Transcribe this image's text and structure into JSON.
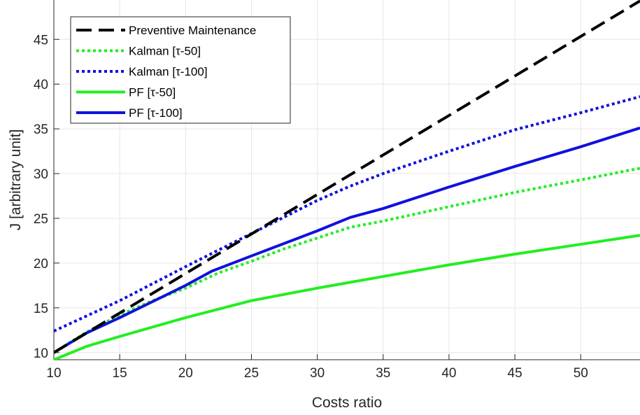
{
  "chart_data": {
    "type": "line",
    "xlabel": "Costs ratio",
    "ylabel": "J [arbitrary unit]",
    "xlim": [
      10,
      54.5
    ],
    "ylim": [
      9.2,
      49.4
    ],
    "xticks": [
      10,
      15,
      20,
      25,
      30,
      35,
      40,
      45,
      50
    ],
    "yticks": [
      10,
      15,
      20,
      25,
      30,
      35,
      40,
      45
    ],
    "grid": true,
    "legend_position": "top-left",
    "series": [
      {
        "name": "Preventive Maintenance",
        "color": "#000000",
        "style": "dashed",
        "x": [
          10,
          54.5
        ],
        "y": [
          10.0,
          49.3
        ]
      },
      {
        "name": "Kalman [τ-50]",
        "color": "#22ee22",
        "style": "dotted",
        "x": [
          10,
          12.5,
          15,
          17.5,
          20,
          22.5,
          25,
          27.5,
          30,
          32.5,
          35,
          40,
          45,
          50,
          54.5
        ],
        "y": [
          10.0,
          12.3,
          14.2,
          15.8,
          17.2,
          18.9,
          20.2,
          21.6,
          22.8,
          24.0,
          24.7,
          26.3,
          27.9,
          29.3,
          30.6
        ]
      },
      {
        "name": "Kalman [τ-100]",
        "color": "#1111dd",
        "style": "dotted",
        "x": [
          10,
          15,
          20,
          25,
          30,
          32.5,
          35,
          40,
          45,
          50,
          54.5
        ],
        "y": [
          12.4,
          15.8,
          19.6,
          23.3,
          27.0,
          28.6,
          30.0,
          32.5,
          34.9,
          36.8,
          38.6
        ]
      },
      {
        "name": "PF [τ-50]",
        "color": "#22ee22",
        "style": "solid",
        "x": [
          10,
          12.5,
          15,
          20,
          25,
          30,
          35,
          40,
          45,
          50,
          54.5
        ],
        "y": [
          9.2,
          10.7,
          11.8,
          13.9,
          15.8,
          17.2,
          18.5,
          19.8,
          21.0,
          22.1,
          23.1
        ]
      },
      {
        "name": "PF [τ-100]",
        "color": "#1111dd",
        "style": "solid",
        "x": [
          10,
          12.5,
          15,
          20,
          22,
          25,
          30,
          32.5,
          35,
          40,
          45,
          50,
          54.5
        ],
        "y": [
          10.0,
          12.2,
          13.9,
          17.5,
          19.1,
          20.8,
          23.6,
          25.1,
          26.1,
          28.5,
          30.8,
          33.0,
          35.1
        ]
      }
    ]
  }
}
